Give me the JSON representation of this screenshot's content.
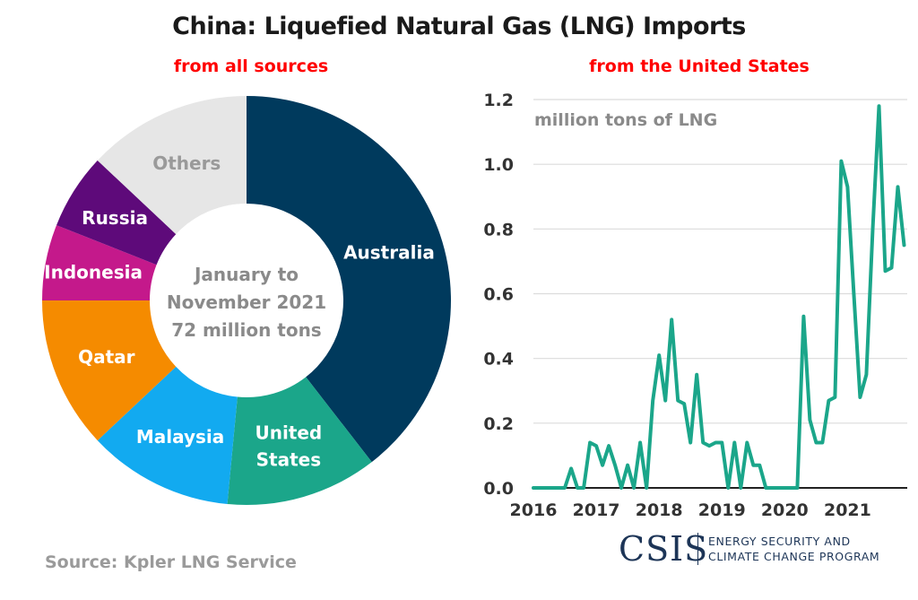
{
  "header": {
    "title": "China: Liquefied Natural Gas (LNG) Imports",
    "subtitle_left": "from all sources",
    "subtitle_right": "from the United States"
  },
  "source": "Source: Kpler LNG Service",
  "logo": {
    "mark": "CSIS",
    "line1": "ENERGY SECURITY AND",
    "line2": "CLIMATE CHANGE PROGRAM",
    "color": "#1d3557"
  },
  "chart_data": [
    {
      "type": "pie",
      "donut": true,
      "title": "from all sources",
      "center_label": [
        "January to",
        "November 2021",
        "72 million tons"
      ],
      "slices": [
        {
          "label": [
            "Australia"
          ],
          "value": 39.5,
          "color": "#003a5d",
          "text_color": "#ffffff"
        },
        {
          "label": [
            "United",
            "States"
          ],
          "value": 12.0,
          "color": "#1ba68a",
          "text_color": "#ffffff"
        },
        {
          "label": [
            "Malaysia"
          ],
          "value": 11.5,
          "color": "#12aaf0",
          "text_color": "#ffffff"
        },
        {
          "label": [
            "Qatar"
          ],
          "value": 12.0,
          "color": "#f58b00",
          "text_color": "#ffffff"
        },
        {
          "label": [
            "Indonesia"
          ],
          "value": 6.0,
          "color": "#c4198b",
          "text_color": "#ffffff"
        },
        {
          "label": [
            "Russia"
          ],
          "value": 6.0,
          "color": "#5e0a7a",
          "text_color": "#ffffff"
        },
        {
          "label": [
            "Others"
          ],
          "value": 13.0,
          "color": "#e6e6e6",
          "text_color": "#9a9a9a"
        }
      ]
    },
    {
      "type": "line",
      "title": "from the United States",
      "ylabel": "million tons of LNG",
      "xlim": [
        2016,
        2021.95
      ],
      "ylim": [
        0,
        1.2
      ],
      "yticks": [
        "0.0",
        "0.2",
        "0.4",
        "0.6",
        "0.8",
        "1.0",
        "1.2"
      ],
      "yticks_values": [
        0,
        0.2,
        0.4,
        0.6,
        0.8,
        1.0,
        1.2
      ],
      "xticks": [
        "2016",
        "2017",
        "2018",
        "2019",
        "2020",
        "2021"
      ],
      "xticks_values": [
        2016,
        2017,
        2018,
        2019,
        2020,
        2021
      ],
      "grid": true,
      "line_color": "#1ba68a",
      "series": [
        {
          "x": [
            2016.0,
            2016.5,
            2016.6,
            2016.7,
            2016.8,
            2016.9,
            2017.0,
            2017.1,
            2017.2,
            2017.3,
            2017.4,
            2017.5,
            2017.6,
            2017.7,
            2017.8,
            2017.9,
            2018.0,
            2018.1,
            2018.2,
            2018.3,
            2018.4,
            2018.5,
            2018.6,
            2018.7,
            2018.8,
            2018.9,
            2019.0,
            2019.1,
            2019.2,
            2019.3,
            2019.4,
            2019.5,
            2019.6,
            2019.7,
            2019.8,
            2019.9,
            2020.0,
            2020.1,
            2020.2,
            2020.3,
            2020.4,
            2020.5,
            2020.6,
            2020.7,
            2020.8,
            2020.9,
            2021.0,
            2021.1,
            2021.2,
            2021.3,
            2021.4,
            2021.5,
            2021.6,
            2021.7,
            2021.8,
            2021.9
          ],
          "y": [
            0.0,
            0.0,
            0.06,
            0.0,
            0.0,
            0.14,
            0.13,
            0.07,
            0.13,
            0.07,
            0.0,
            0.07,
            0.0,
            0.14,
            0.0,
            0.27,
            0.41,
            0.27,
            0.52,
            0.27,
            0.26,
            0.14,
            0.35,
            0.14,
            0.13,
            0.14,
            0.14,
            0.0,
            0.14,
            0.0,
            0.14,
            0.07,
            0.07,
            0.0,
            0.0,
            0.0,
            0.0,
            0.0,
            0.0,
            0.53,
            0.21,
            0.14,
            0.14,
            0.27,
            0.28,
            1.01,
            0.93,
            0.6,
            0.28,
            0.35,
            0.8,
            1.18,
            0.67,
            0.68,
            0.93,
            0.75
          ]
        }
      ]
    }
  ]
}
